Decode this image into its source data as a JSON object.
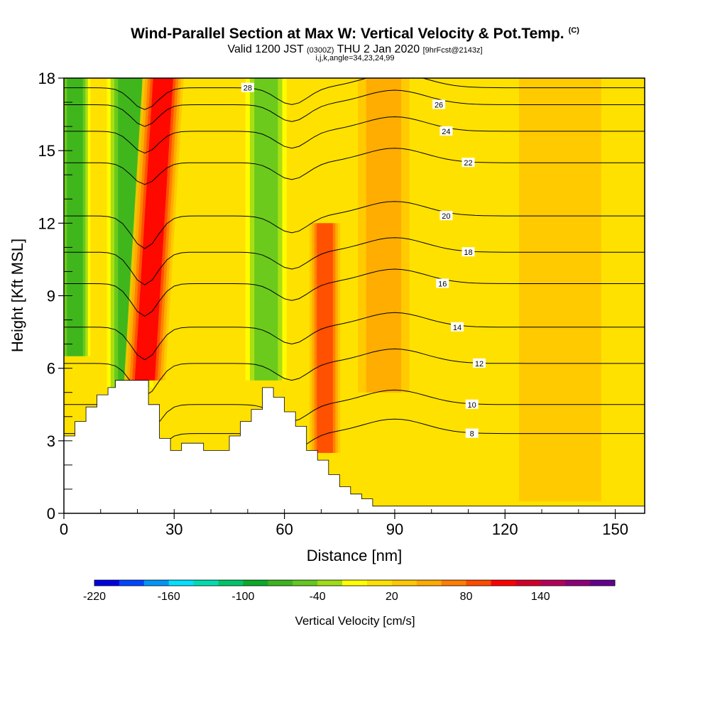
{
  "title": {
    "main": "Wind-Parallel Section at Max W: Vertical Velocity & Pot.Temp.",
    "main_mark": "(C)",
    "valid_a": "Valid 1200 JST",
    "valid_b": "(0300Z)",
    "valid_c": "THU 2 Jan 2020",
    "valid_d": "[9hrFcst@2143z]",
    "indices": "i,j,k,angle=34,23,24,99"
  },
  "chart_data": {
    "type": "heatmap",
    "xlabel": "Distance [nm]",
    "ylabel": "Height [Kft MSL]",
    "xlim": [
      0,
      158
    ],
    "ylim": [
      0,
      18
    ],
    "x_ticks": [
      0,
      30,
      60,
      90,
      120,
      150
    ],
    "x_tick_labels": [
      "0",
      "30",
      "60",
      "90",
      "120",
      "150"
    ],
    "y_ticks": [
      0,
      3,
      6,
      9,
      12,
      15,
      18
    ],
    "y_tick_labels": [
      "0",
      "3",
      "6",
      "9",
      "12",
      "15",
      "18"
    ],
    "colorbar": {
      "label": "Vertical Velocity [cm/s]",
      "min": -220,
      "step": 20,
      "colors": [
        "#0000e0",
        "#0046ff",
        "#0096f8",
        "#00e0ff",
        "#00dcb0",
        "#00c46a",
        "#0aaa28",
        "#3cb41e",
        "#64c81e",
        "#a0dc14",
        "#ffff00",
        "#ffe100",
        "#ffc800",
        "#ffaa00",
        "#ff7d00",
        "#ff4b00",
        "#ff0000",
        "#d20028",
        "#b4005a",
        "#8c0078",
        "#64008c"
      ],
      "tick_values": [
        -220,
        -160,
        -100,
        -40,
        20,
        80,
        140
      ],
      "tick_labels": [
        "-220",
        "-160",
        "-100",
        "-40",
        "20",
        "80",
        "140"
      ]
    },
    "terrain_kft": [
      [
        0,
        3.2
      ],
      [
        3,
        3.2
      ],
      [
        3,
        3.8
      ],
      [
        6,
        3.8
      ],
      [
        6,
        4.4
      ],
      [
        9,
        4.4
      ],
      [
        9,
        4.9
      ],
      [
        12,
        4.9
      ],
      [
        12,
        5.2
      ],
      [
        14,
        5.2
      ],
      [
        14,
        5.5
      ],
      [
        23,
        5.5
      ],
      [
        23,
        4.5
      ],
      [
        26,
        4.5
      ],
      [
        26,
        3.1
      ],
      [
        29,
        3.1
      ],
      [
        29,
        2.6
      ],
      [
        32,
        2.6
      ],
      [
        32,
        2.9
      ],
      [
        38,
        2.9
      ],
      [
        38,
        2.6
      ],
      [
        45,
        2.6
      ],
      [
        45,
        3.2
      ],
      [
        48,
        3.2
      ],
      [
        48,
        3.8
      ],
      [
        51,
        3.8
      ],
      [
        51,
        4.3
      ],
      [
        54,
        4.3
      ],
      [
        54,
        5.2
      ],
      [
        57,
        5.2
      ],
      [
        57,
        4.8
      ],
      [
        60,
        4.8
      ],
      [
        60,
        4.2
      ],
      [
        63,
        4.2
      ],
      [
        63,
        3.6
      ],
      [
        66,
        3.6
      ],
      [
        66,
        2.6
      ],
      [
        69,
        2.6
      ],
      [
        69,
        2.2
      ],
      [
        72,
        2.2
      ],
      [
        72,
        1.6
      ],
      [
        75,
        1.6
      ],
      [
        75,
        1.1
      ],
      [
        78,
        1.1
      ],
      [
        78,
        0.8
      ],
      [
        81,
        0.8
      ],
      [
        81,
        0.6
      ],
      [
        84,
        0.6
      ],
      [
        84,
        0.3
      ],
      [
        158,
        0.3
      ],
      [
        158,
        0
      ]
    ],
    "velocity_features": [
      {
        "x": 3,
        "w": 3,
        "z0": 6.5,
        "z1": 18,
        "value": -80
      },
      {
        "x": 18,
        "w": 4.5,
        "z0": 5.2,
        "z1": 18,
        "value": -90
      },
      {
        "x": 27,
        "w": 4,
        "z0": 5.5,
        "z1": 18,
        "value": 110,
        "x_top": 27,
        "x_bottom": 22
      },
      {
        "x": 55,
        "w": 4,
        "z0": 5.5,
        "z1": 18,
        "value": -60
      },
      {
        "x": 71,
        "w": 3,
        "z0": 2.5,
        "z1": 12,
        "value": 90
      },
      {
        "x": 87,
        "w": 5,
        "z0": 5,
        "z1": 18,
        "value": 40
      },
      {
        "x": 135,
        "w": 8,
        "z0": 0.5,
        "z1": 18,
        "value": 20
      }
    ],
    "theta_contours": [
      {
        "value": 8,
        "label_x": 111,
        "label_y": 3.3
      },
      {
        "value": 10,
        "label_x": 111,
        "label_y": 4.5
      },
      {
        "value": 12,
        "label_x": 113,
        "label_y": 6.2
      },
      {
        "value": 14,
        "label_x": 107,
        "label_y": 7.7
      },
      {
        "value": 16,
        "label_x": 103,
        "label_y": 9.5
      },
      {
        "value": 18,
        "label_x": 110,
        "label_y": 10.8
      },
      {
        "value": 20,
        "label_x": 104,
        "label_y": 12.3
      },
      {
        "value": 22,
        "label_x": 110,
        "label_y": 14.5
      },
      {
        "value": 24,
        "label_x": 104,
        "label_y": 15.8
      },
      {
        "value": 26,
        "label_x": 102,
        "label_y": 16.9
      },
      {
        "value": 28,
        "label_x": 50,
        "label_y": 17.6
      }
    ]
  }
}
